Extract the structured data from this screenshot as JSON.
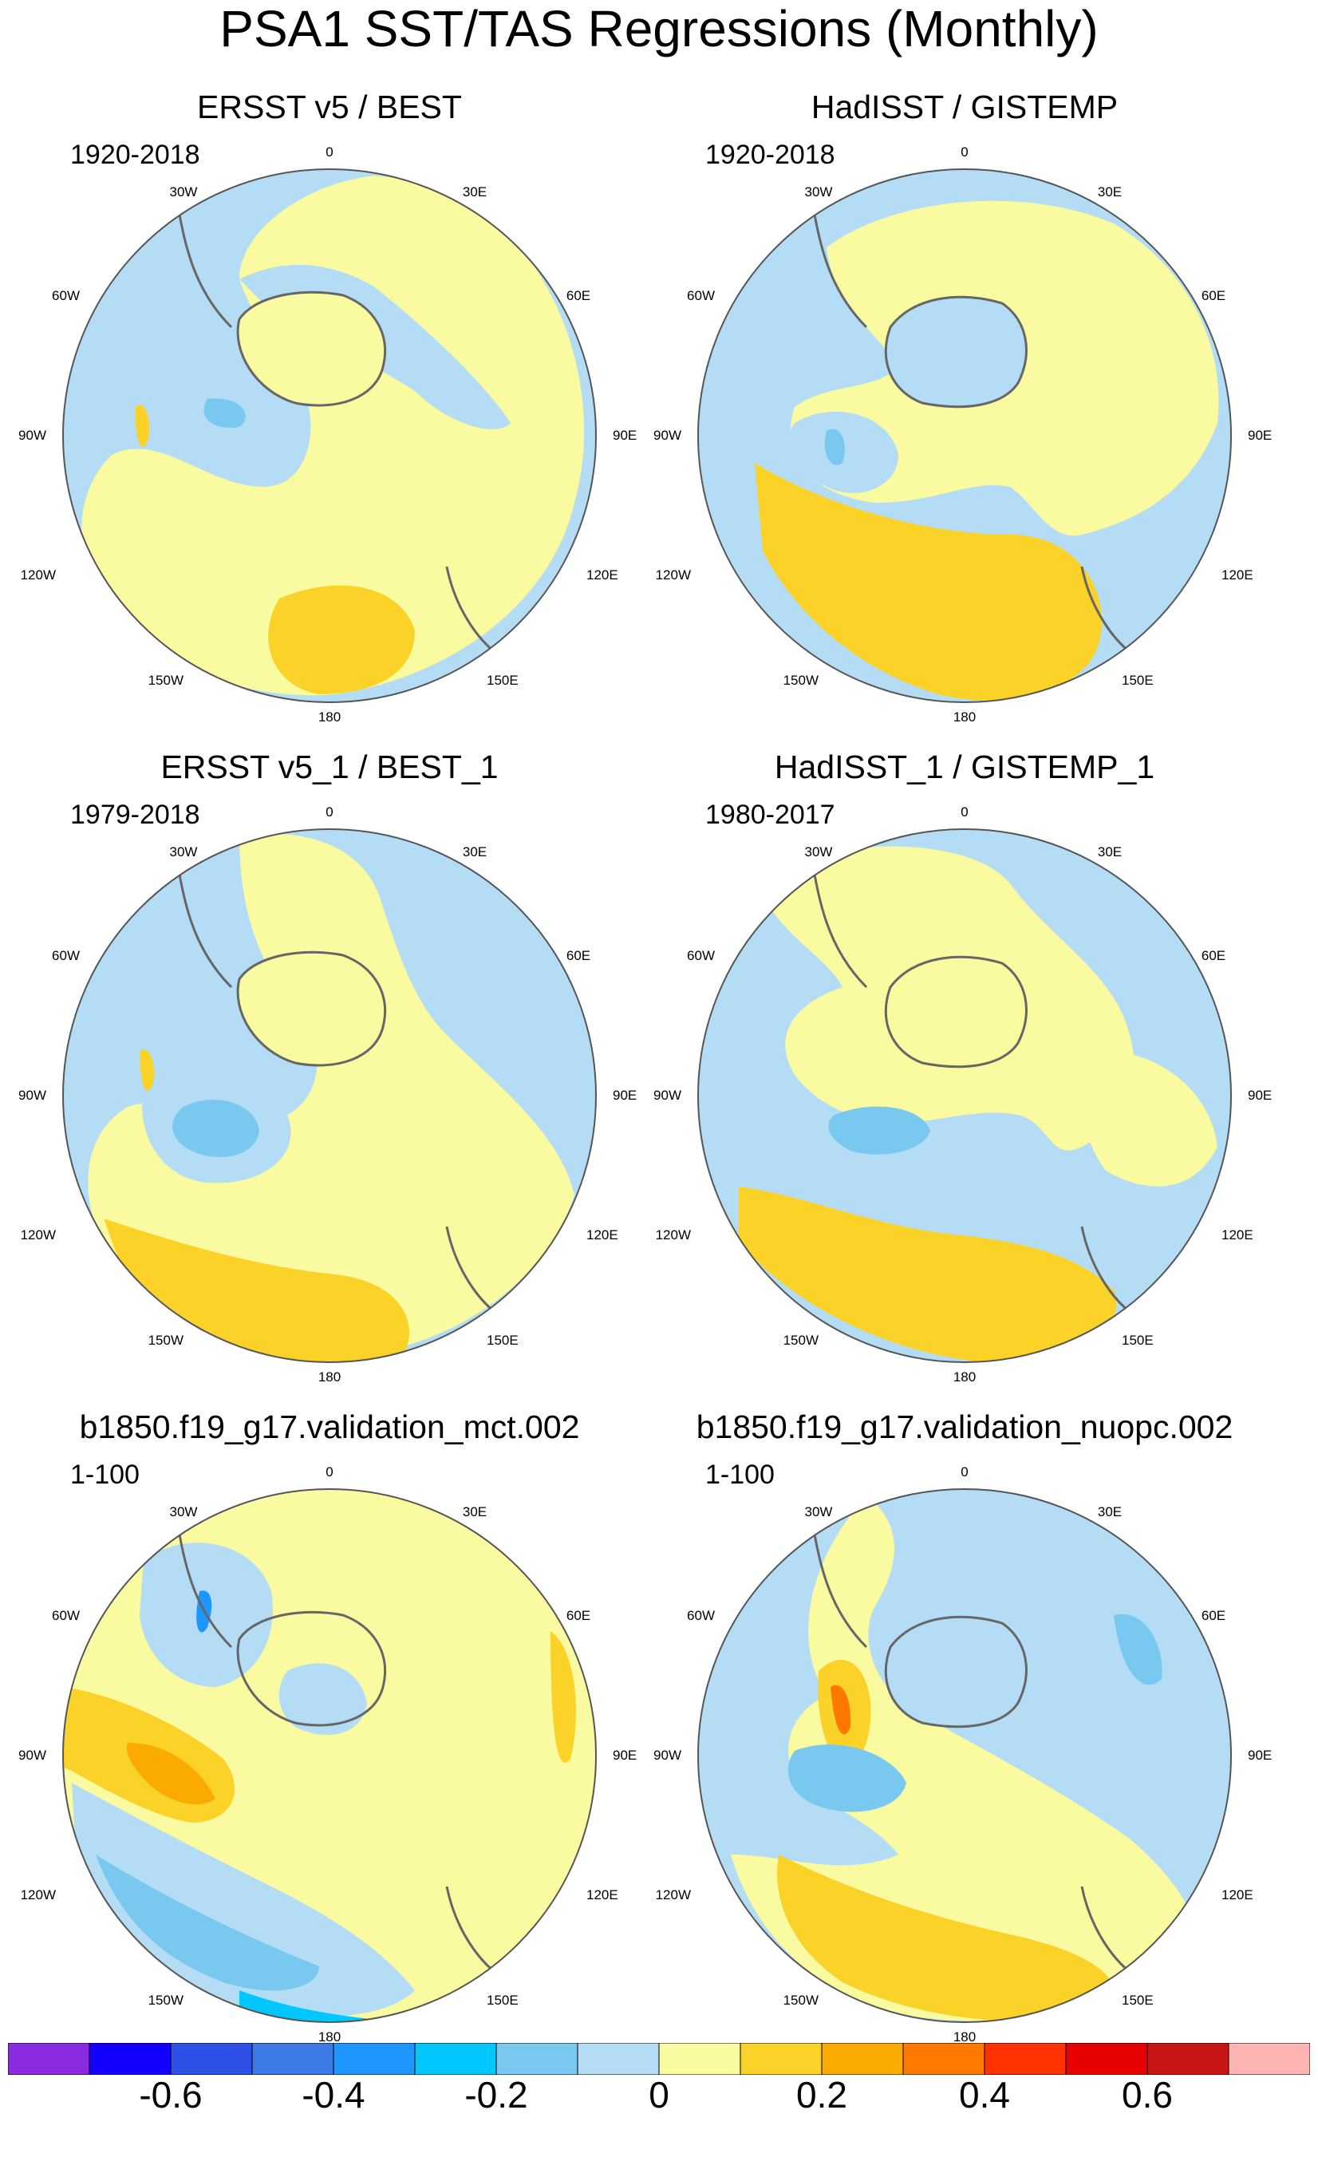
{
  "title": "PSA1 SST/TAS Regressions (Monthly)",
  "panels": [
    {
      "title": "ERSST v5 / BEST",
      "period": "1920-2018"
    },
    {
      "title": "HadISST / GISTEMP",
      "period": "1920-2018"
    },
    {
      "title": "ERSST v5_1 / BEST_1",
      "period": "1979-2018"
    },
    {
      "title": "HadISST_1 / GISTEMP_1",
      "period": "1980-2017"
    },
    {
      "title": "b1850.f19_g17.validation_mct.002",
      "period": "1-100"
    },
    {
      "title": "b1850.f19_g17.validation_nuopc.002",
      "period": "1-100"
    }
  ],
  "longitude_labels": {
    "lon_0": "0",
    "lon_30e": "30E",
    "lon_60e": "60E",
    "lon_90e": "90E",
    "lon_120e": "120E",
    "lon_150e": "150E",
    "lon_180": "180",
    "lon_150w": "150W",
    "lon_120w": "120W",
    "lon_90w": "90W",
    "lon_60w": "60W",
    "lon_30w": "30W"
  },
  "projection": "south polar stereographic",
  "colorbar": {
    "colors": [
      "#8a2be2",
      "#1400ff",
      "#2e50e6",
      "#3c7ae6",
      "#1e96ff",
      "#00c8ff",
      "#78c8f0",
      "#b4dcf5",
      "#fafaa0",
      "#fad228",
      "#fbaa00",
      "#ff7800",
      "#ff3200",
      "#e60000",
      "#c81414",
      "#ffb4b4"
    ],
    "labels": [
      "-0.6",
      "-0.4",
      "-0.2",
      "0",
      "0.2",
      "0.4",
      "0.6"
    ]
  }
}
